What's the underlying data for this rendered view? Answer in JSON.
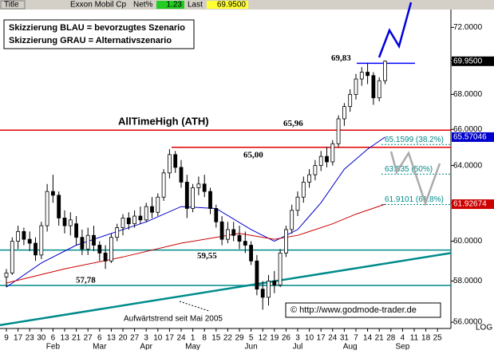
{
  "header": {
    "title": "Title",
    "symbol": "Exxon Mobil Cp",
    "net_label": "Net%",
    "net": "1.23",
    "last_label": "Last",
    "last": "69.9500"
  },
  "chart_data": {
    "type": "candlestick",
    "legend_lines": [
      "Skizzierung BLAU = bevorzugtes Szenario",
      "Skizzierung GRAU = Alternativszenario"
    ],
    "copyright": "© http://www.godmode-trader.de",
    "log_label": "LOG",
    "log": true,
    "categories": [
      "9",
      null,
      "17",
      null,
      "23",
      null,
      "30",
      null,
      "6",
      null,
      "13",
      null,
      "21",
      null,
      "27",
      null,
      "6",
      null,
      "13",
      null,
      "20",
      null,
      "27",
      null,
      "3",
      null,
      "10",
      null,
      "17",
      null,
      "24",
      null,
      "1",
      null,
      "8",
      null,
      "15",
      null,
      "22",
      null,
      "29",
      null,
      "5",
      null,
      "12",
      null,
      "19",
      null,
      "26",
      null,
      "3",
      null,
      "10",
      null,
      "17",
      null,
      "24",
      null,
      "31",
      null,
      "7",
      null,
      "14",
      null,
      "21",
      null,
      "28",
      null,
      "4",
      null,
      "11",
      null,
      "18",
      null,
      "25",
      null
    ],
    "month_labels": [
      {
        "name": "Feb",
        "category": 8
      },
      {
        "name": "Mar",
        "category": 16
      },
      {
        "name": "Apr",
        "category": 24
      },
      {
        "name": "May",
        "category": 32
      },
      {
        "name": "Jun",
        "category": 42
      },
      {
        "name": "Jul",
        "category": 50
      },
      {
        "name": "Aug",
        "category": 59
      },
      {
        "name": "Sep",
        "category": 68
      }
    ],
    "open": [
      58.2,
      58.4,
      60.0,
      60.5,
      60.1,
      59.9,
      59.3,
      60.8,
      62.6,
      62.4,
      61.2,
      60.8,
      60.9,
      60.2,
      59.6,
      60.3,
      59.8,
      59.4,
      59.0,
      60.2,
      60.7,
      61.2,
      60.9,
      61.3,
      61.1,
      61.8,
      61.5,
      62.3,
      63.6,
      64.6,
      63.9,
      63.1,
      61.7,
      62.8,
      63.0,
      62.6,
      61.7,
      61.0,
      60.1,
      60.6,
      60.3,
      60.0,
      59.8,
      59.0,
      57.6,
      57.2,
      58.0,
      57.8,
      59.4,
      60.6,
      61.6,
      62.3,
      63.1,
      63.5,
      64.0,
      64.5,
      64.2,
      65.2,
      66.6,
      67.3,
      68.0,
      68.9,
      69.3,
      69.1,
      67.8,
      68.8,
      null,
      null,
      null,
      null,
      null,
      null,
      null,
      null,
      null,
      null
    ],
    "high": [
      58.6,
      60.2,
      60.8,
      60.7,
      60.5,
      60.2,
      61.0,
      63.0,
      63.5,
      62.6,
      61.6,
      61.5,
      61.3,
      60.6,
      60.7,
      60.8,
      60.0,
      59.8,
      60.4,
      60.9,
      61.4,
      61.5,
      61.6,
      61.8,
      62.0,
      62.3,
      62.5,
      63.8,
      64.9,
      64.8,
      64.3,
      63.5,
      63.0,
      63.4,
      63.5,
      62.8,
      61.9,
      61.3,
      61.0,
      61.0,
      60.8,
      60.5,
      60.0,
      59.3,
      58.0,
      58.3,
      58.5,
      59.6,
      60.8,
      61.9,
      62.6,
      63.4,
      63.8,
      64.3,
      64.8,
      65.0,
      65.4,
      66.8,
      67.5,
      68.3,
      69.2,
      69.6,
      69.83,
      69.3,
      69.0,
      70.0,
      null,
      null,
      null,
      null,
      null,
      null,
      null,
      null,
      null,
      null
    ],
    "low": [
      57.7,
      58.3,
      59.6,
      59.8,
      59.5,
      59.0,
      59.1,
      60.5,
      62.0,
      60.8,
      60.4,
      60.3,
      59.8,
      59.3,
      59.3,
      59.5,
      59.0,
      58.6,
      58.9,
      60.0,
      60.3,
      60.6,
      60.7,
      60.9,
      61.0,
      61.2,
      61.3,
      62.1,
      63.3,
      63.6,
      62.8,
      61.2,
      61.5,
      62.4,
      62.3,
      61.4,
      60.7,
      59.8,
      59.9,
      60.0,
      59.6,
      59.4,
      58.8,
      57.3,
      56.6,
      56.8,
      57.4,
      57.7,
      59.2,
      60.4,
      61.3,
      62.0,
      62.8,
      63.2,
      63.7,
      63.9,
      64.0,
      65.0,
      66.2,
      67.0,
      67.7,
      68.5,
      68.6,
      67.4,
      67.6,
      68.6,
      null,
      null,
      null,
      null,
      null,
      null,
      null,
      null,
      null,
      null
    ],
    "close": [
      58.4,
      60.0,
      60.5,
      60.1,
      59.9,
      59.3,
      60.8,
      62.6,
      62.4,
      61.2,
      60.8,
      61.1,
      60.2,
      59.6,
      60.3,
      59.8,
      59.4,
      59.0,
      60.2,
      60.7,
      61.2,
      60.9,
      61.3,
      61.1,
      61.8,
      61.5,
      62.3,
      63.6,
      64.6,
      63.9,
      63.1,
      61.7,
      62.8,
      63.0,
      62.6,
      61.7,
      61.0,
      60.1,
      60.6,
      60.3,
      60.0,
      59.8,
      59.0,
      57.6,
      57.2,
      58.0,
      57.8,
      59.4,
      60.6,
      61.6,
      62.3,
      63.1,
      63.5,
      64.0,
      64.5,
      64.2,
      65.2,
      66.6,
      67.3,
      68.0,
      68.9,
      69.3,
      69.1,
      67.8,
      68.8,
      69.95,
      null,
      null,
      null,
      null,
      null,
      null,
      null,
      null,
      null,
      null
    ],
    "last_price": {
      "value": 69.95,
      "label": "69.9500"
    },
    "series": [
      {
        "color": "#0000cc",
        "x": [
          0,
          6,
          12,
          18,
          24,
          30,
          36,
          42,
          46,
          50,
          54,
          58,
          62,
          65
        ],
        "values": [
          57.7,
          58.9,
          59.8,
          60.4,
          61.0,
          61.8,
          61.7,
          60.6,
          60.0,
          60.6,
          62.0,
          63.8,
          64.9,
          65.57046
        ]
      },
      {
        "color": "#cc0000",
        "x": [
          0,
          10,
          20,
          30,
          40,
          46,
          50,
          56,
          60,
          65
        ],
        "values": [
          57.9,
          58.6,
          59.2,
          59.9,
          60.4,
          60.1,
          60.3,
          60.9,
          61.4,
          61.92674
        ]
      }
    ],
    "levels": [
      {
        "value": 65.96,
        "color": "#e00000",
        "label": "65,96",
        "name": "AllTimeHigh (ATH)"
      },
      {
        "value": 65.0,
        "color": "#e00000",
        "label": "65,00"
      },
      {
        "value": 59.55,
        "color": "#008b8b",
        "label": "59,55"
      },
      {
        "value": 57.78,
        "color": "#008b8b",
        "label": "57,78"
      },
      {
        "value": 69.83,
        "color": "#0000ff",
        "label": "69,83"
      }
    ],
    "trendline": {
      "label": "Aufwärtstrend seit Mai 2005",
      "values": [
        55.86,
        59.4
      ],
      "color": "#008b8b"
    },
    "fib": [
      {
        "value": 65.1599,
        "label": "65.1599 (38.2%)"
      },
      {
        "value": 63.535,
        "label": "63.535 (50%)"
      },
      {
        "value": 61.9101,
        "label": "61.9101 (61.8%)"
      }
    ],
    "ylim": [
      55.7,
      73.1
    ],
    "yticks": [
      {
        "value": 56,
        "label": "56.0000"
      },
      {
        "value": 58,
        "label": "58.0000"
      },
      {
        "value": 60,
        "label": "60.0000"
      },
      {
        "value": 62,
        "label": "62.0000"
      },
      {
        "value": 64,
        "label": "64.0000"
      },
      {
        "value": 66,
        "label": "66.0000"
      },
      {
        "value": 68,
        "label": "68.0000"
      },
      {
        "value": 70,
        "label": "70.0000"
      },
      {
        "value": 72,
        "label": "72.0000"
      }
    ]
  }
}
